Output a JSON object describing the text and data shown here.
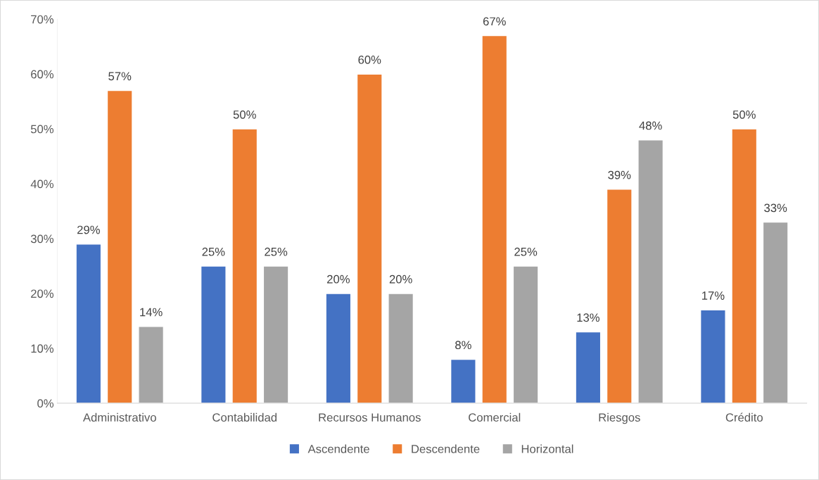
{
  "chart_data": {
    "type": "bar",
    "categories": [
      "Administrativo",
      "Contabilidad",
      "Recursos Humanos",
      "Comercial",
      "Riesgos",
      "Crédito"
    ],
    "series": [
      {
        "name": "Ascendente",
        "color": "#4472c4",
        "values": [
          29,
          25,
          20,
          8,
          13,
          17
        ],
        "value_labels": [
          "29%",
          "25%",
          "20%",
          "8%",
          "13%",
          "17%"
        ]
      },
      {
        "name": "Descendente",
        "color": "#ed7d31",
        "values": [
          57,
          50,
          60,
          67,
          39,
          50
        ],
        "value_labels": [
          "57%",
          "50%",
          "60%",
          "67%",
          "39%",
          "50%"
        ]
      },
      {
        "name": "Horizontal",
        "color": "#a5a5a5",
        "values": [
          14,
          25,
          20,
          25,
          48,
          33
        ],
        "value_labels": [
          "14%",
          "25%",
          "20%",
          "25%",
          "48%",
          "33%"
        ]
      }
    ],
    "ylim": [
      0,
      70
    ],
    "yticks": [
      {
        "value": 0,
        "label": "0%"
      },
      {
        "value": 10,
        "label": "10%"
      },
      {
        "value": 20,
        "label": "20%"
      },
      {
        "value": 30,
        "label": "30%"
      },
      {
        "value": 40,
        "label": "40%"
      },
      {
        "value": 50,
        "label": "50%"
      },
      {
        "value": 60,
        "label": "60%"
      },
      {
        "value": 70,
        "label": "70%"
      }
    ],
    "grid": false,
    "legend": "bottom"
  }
}
